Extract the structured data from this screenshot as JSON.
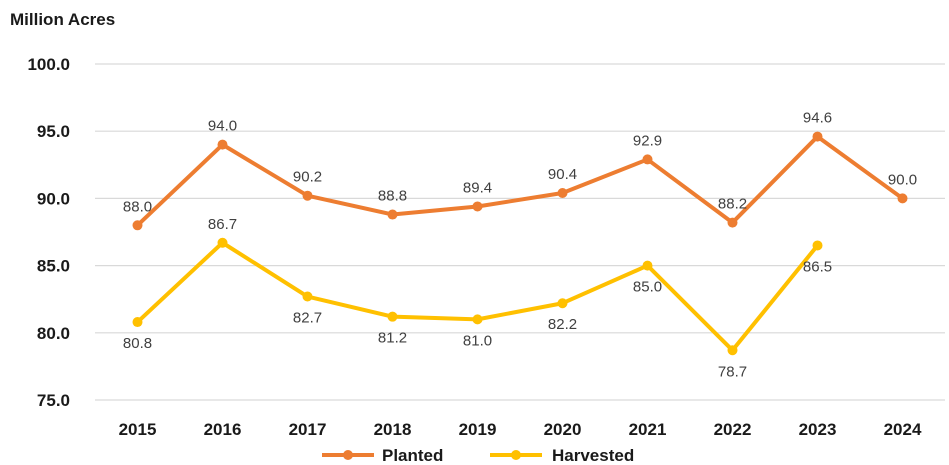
{
  "chart_data": {
    "type": "line",
    "ylabel": "Million Acres",
    "xlabel": "",
    "categories": [
      "2015",
      "2016",
      "2017",
      "2018",
      "2019",
      "2020",
      "2021",
      "2022",
      "2023",
      "2024"
    ],
    "ylim": [
      75.0,
      100.0
    ],
    "yticks": [
      "75.0",
      "80.0",
      "85.0",
      "90.0",
      "95.0",
      "100.0"
    ],
    "grid": true,
    "legend": "bottom",
    "series": [
      {
        "name": "Planted",
        "color": "#ED7D31",
        "values": [
          88.0,
          94.0,
          90.2,
          88.8,
          89.4,
          90.4,
          92.9,
          88.2,
          94.6,
          90.0
        ],
        "labels": [
          "88.0",
          "94.0",
          "90.2",
          "88.8",
          "89.4",
          "90.4",
          "92.9",
          "88.2",
          "94.6",
          "90.0"
        ]
      },
      {
        "name": "Harvested",
        "color": "#FFC000",
        "values": [
          80.8,
          86.7,
          82.7,
          81.2,
          81.0,
          82.2,
          85.0,
          78.7,
          86.5,
          null
        ],
        "labels": [
          "80.8",
          "86.7",
          "82.7",
          "81.2",
          "81.0",
          "82.2",
          "85.0",
          "78.7",
          "86.5",
          null
        ]
      }
    ]
  }
}
